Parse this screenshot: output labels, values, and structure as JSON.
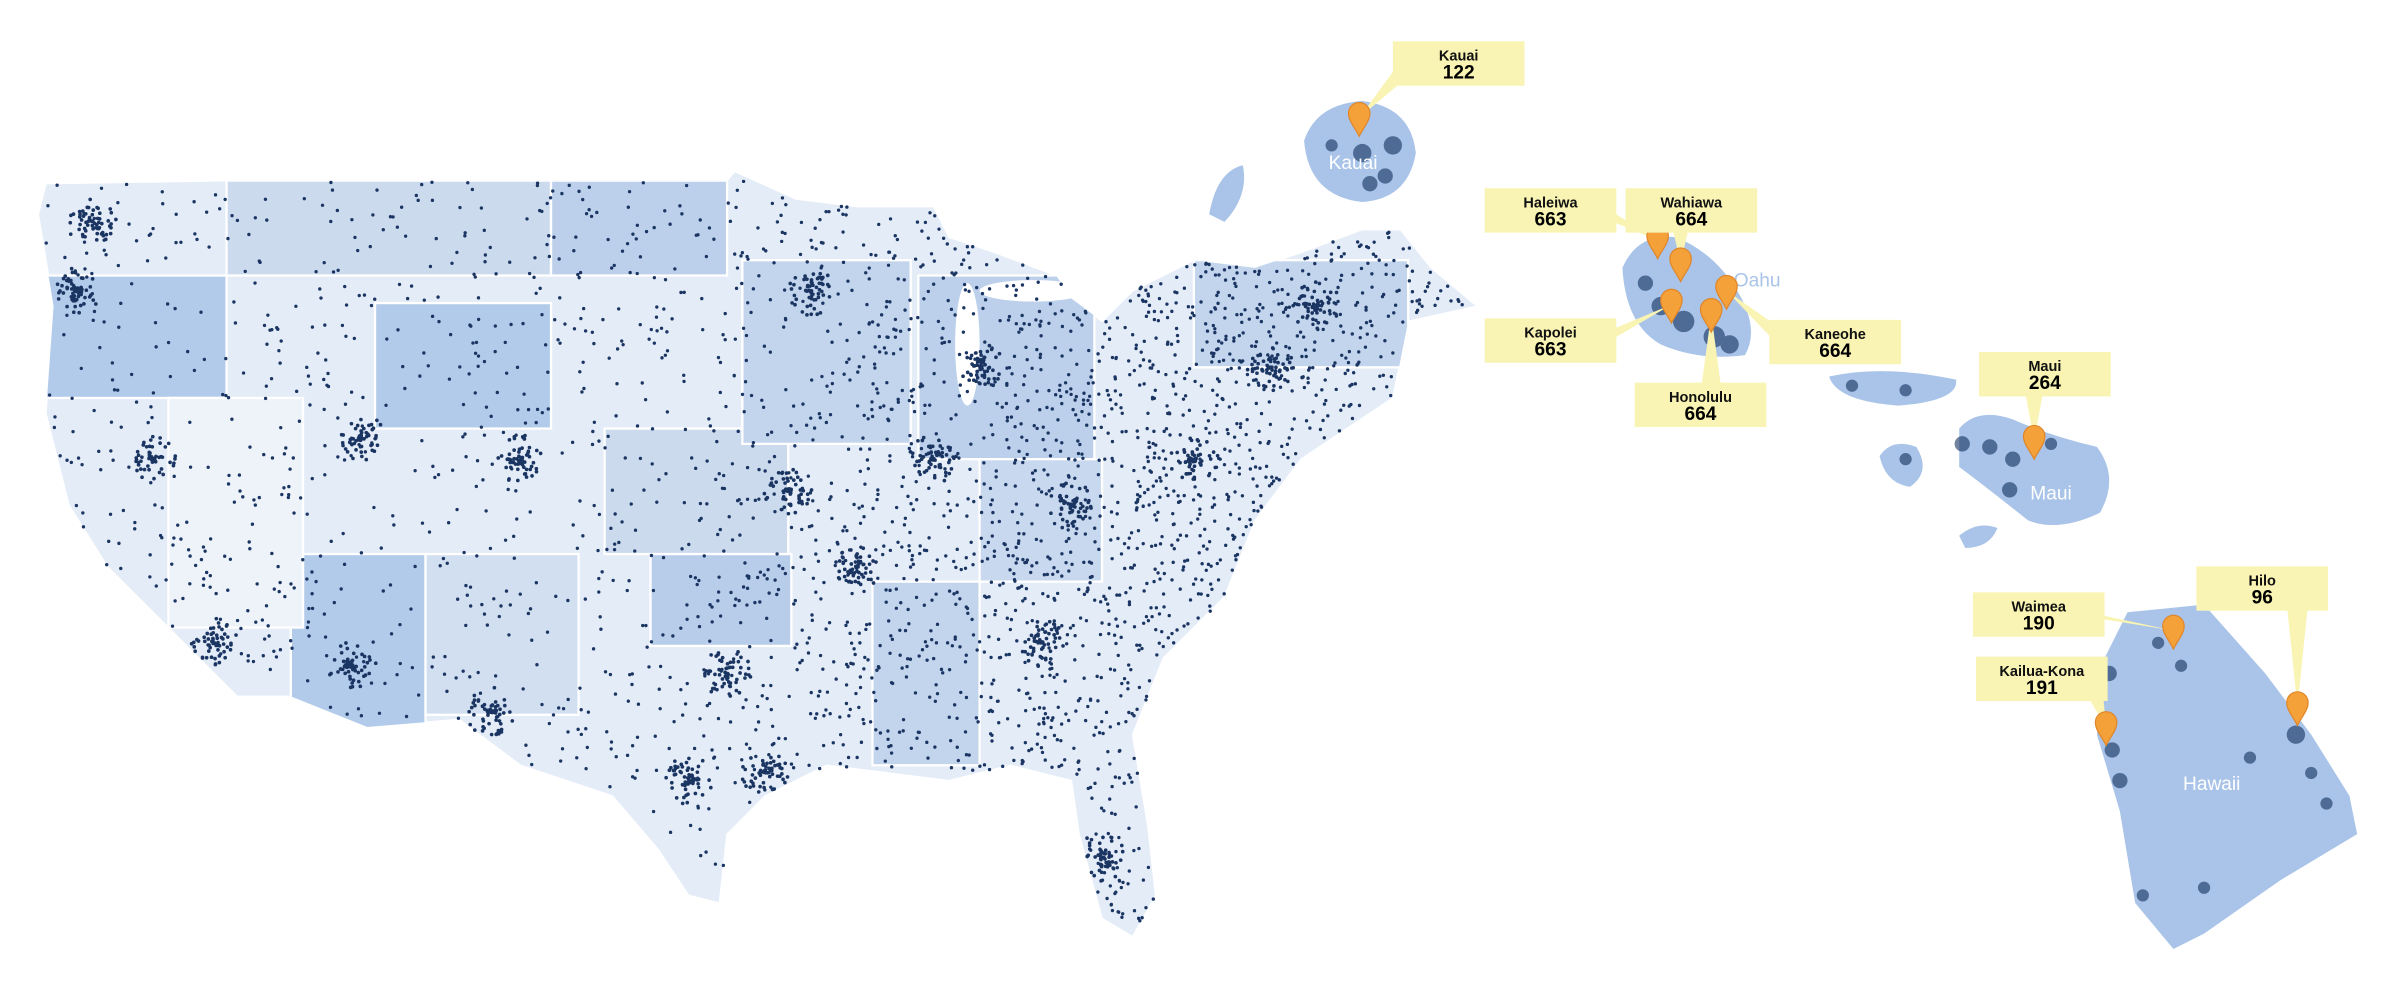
{
  "island_labels": [
    "Kauai",
    "Oahu",
    "Maui",
    "Hawaii"
  ],
  "callouts": [
    {
      "name": "Kauai",
      "count": 122
    },
    {
      "name": "Haleiwa",
      "count": 663
    },
    {
      "name": "Wahiawa",
      "count": 664
    },
    {
      "name": "Kapolei",
      "count": 663
    },
    {
      "name": "Kaneohe",
      "count": 664
    },
    {
      "name": "Honolulu",
      "count": 664
    },
    {
      "name": "Maui",
      "count": 264
    },
    {
      "name": "Waimea",
      "count": 190
    },
    {
      "name": "Hilo",
      "count": 96
    },
    {
      "name": "Kailua-Kona",
      "count": 191
    }
  ]
}
